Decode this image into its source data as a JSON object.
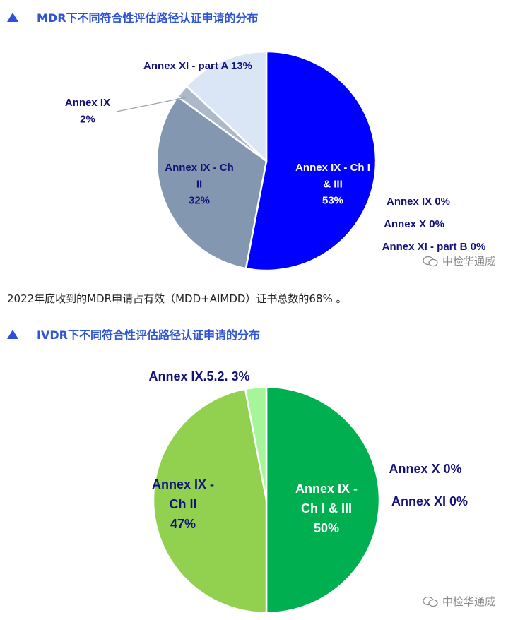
{
  "sections": [
    {
      "title": "MDR下不同符合性评估路径认证申请的分布"
    },
    {
      "title": "IVDR下不同符合性评估路径认证申请的分布"
    }
  ],
  "paragraph": "2022年底收到的MDR申请占有效（MDD+AIMDD）证书总数的68% 。",
  "watermark": "中检华通威",
  "chart_data": [
    {
      "type": "pie",
      "title": "MDR下不同符合性评估路径认证申请的分布",
      "slices": [
        {
          "label": [
            "Annex IX - Ch I",
            "& III",
            "53%"
          ],
          "value": 53,
          "color": "#0000ff",
          "text_color": "#ffffff"
        },
        {
          "label": [
            "Annex IX - Ch",
            "II",
            "32%"
          ],
          "value": 32,
          "color": "#8497b0",
          "text_color": "#12127a"
        },
        {
          "label": [
            "Annex IX",
            "2%"
          ],
          "value": 2,
          "color": "#adb9ca",
          "text_color": "#12127a"
        },
        {
          "label": [
            "Annex XI - part A 13%"
          ],
          "value": 13,
          "color": "#dae6f5",
          "text_color": "#12127a"
        }
      ],
      "zero_labels": [
        "Annex IX 0%",
        "Annex X 0%",
        "Annex XI - part B 0%"
      ]
    },
    {
      "type": "pie",
      "title": "IVDR下不同符合性评估路径认证申请的分布",
      "slices": [
        {
          "label": [
            "Annex IX -",
            "Ch I & III",
            "50%"
          ],
          "value": 50,
          "color": "#00b050",
          "text_color": "#ffffff"
        },
        {
          "label": [
            "Annex IX -",
            "Ch II",
            "47%"
          ],
          "value": 47,
          "color": "#92d050",
          "text_color": "#12127a"
        },
        {
          "label": [
            "Annex IX.5.2.  3%"
          ],
          "value": 3,
          "color": "#a6f59a",
          "text_color": "#12127a"
        }
      ],
      "zero_labels": [
        "Annex X  0%",
        "Annex XI  0%"
      ]
    }
  ]
}
